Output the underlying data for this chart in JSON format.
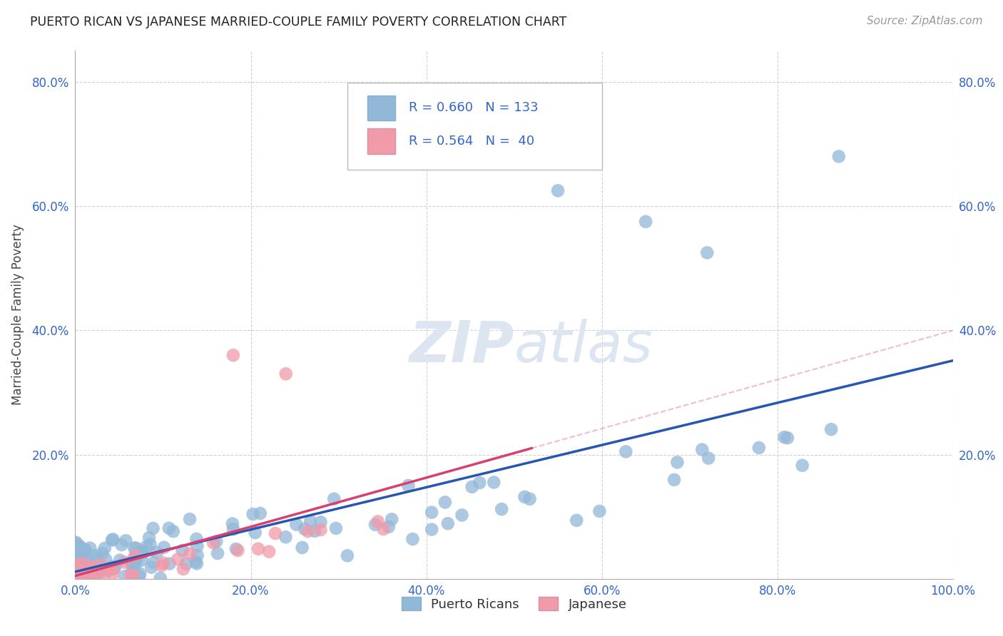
{
  "title": "PUERTO RICAN VS JAPANESE MARRIED-COUPLE FAMILY POVERTY CORRELATION CHART",
  "source": "Source: ZipAtlas.com",
  "ylabel": "Married-Couple Family Poverty",
  "blue_R": 0.66,
  "blue_N": 133,
  "pink_R": 0.564,
  "pink_N": 40,
  "blue_dot_color": "#92b8d8",
  "pink_dot_color": "#f09aaa",
  "blue_line_color": "#2855b0",
  "pink_line_color": "#d84070",
  "background_color": "#ffffff",
  "grid_color": "#cccccc",
  "watermark_color": "#dde6f0",
  "title_color": "#222222",
  "axis_label_color": "#3366cc",
  "legend_text_color": "#3366cc",
  "xlim": [
    0.0,
    1.0
  ],
  "ylim": [
    0.0,
    0.85
  ],
  "xtick_values": [
    0.0,
    0.2,
    0.4,
    0.6,
    0.8,
    1.0
  ],
  "xtick_labels": [
    "0.0%",
    "20.0%",
    "40.0%",
    "60.0%",
    "80.0%",
    "100.0%"
  ],
  "ytick_values": [
    0.2,
    0.4,
    0.6,
    0.8
  ],
  "ytick_labels": [
    "20.0%",
    "40.0%",
    "60.0%",
    "80.0%"
  ],
  "legend_label_blue": "Puerto Ricans",
  "legend_label_pink": "Japanese",
  "blue_scatter_seed": 101,
  "pink_scatter_seed": 202
}
